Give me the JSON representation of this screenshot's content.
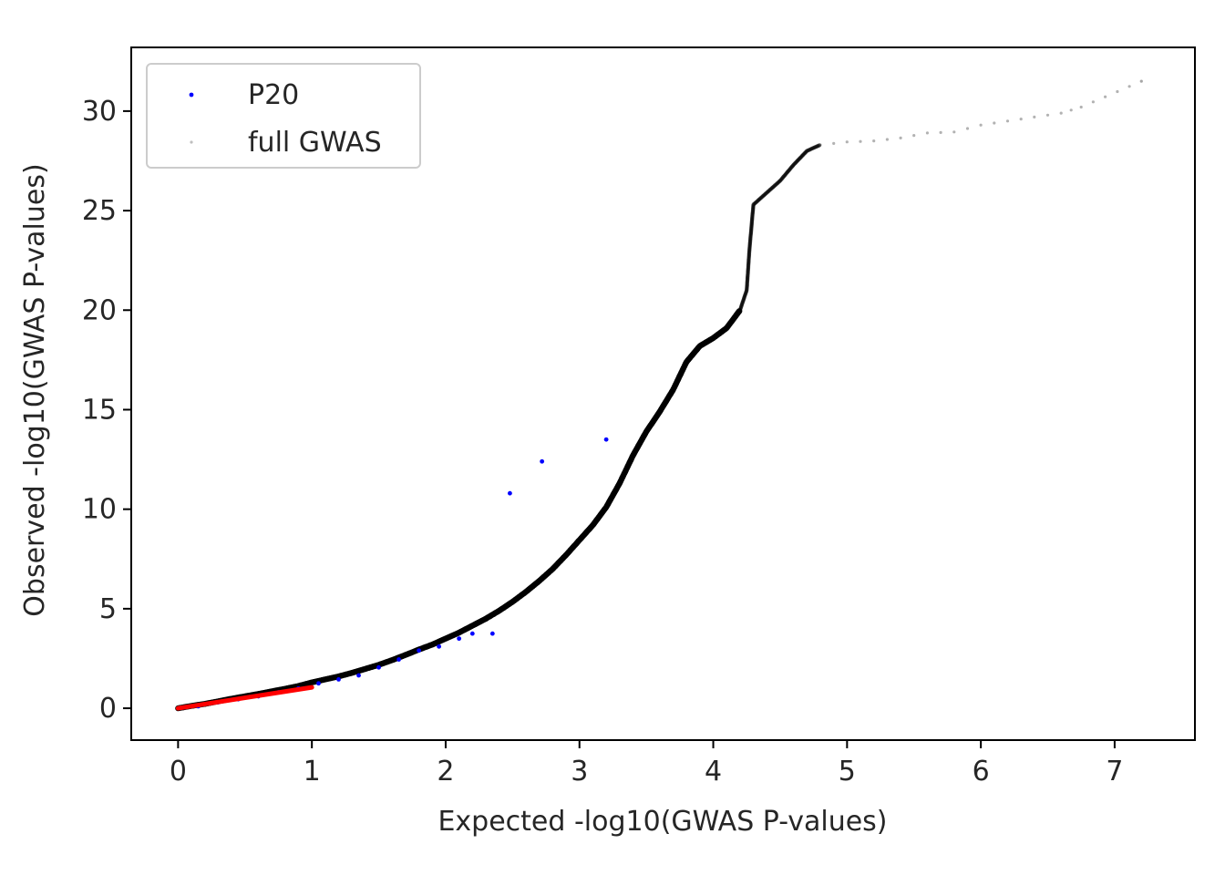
{
  "chart_data": {
    "type": "scatter",
    "xlabel": "Expected -log10(GWAS P-values)",
    "ylabel": "Observed -log10(GWAS P-values)",
    "xlim": [
      -0.35,
      7.6
    ],
    "ylim": [
      -1.6,
      33.2
    ],
    "x_ticks": [
      0,
      1,
      2,
      3,
      4,
      5,
      6,
      7
    ],
    "y_ticks": [
      0,
      5,
      10,
      15,
      20,
      25,
      30
    ],
    "grid": false,
    "legend_position": "top-left",
    "series": [
      {
        "name": "P20",
        "color": "#0000ff",
        "marker": "dot",
        "points": [
          [
            0.05,
            0.05
          ],
          [
            0.15,
            0.1
          ],
          [
            0.3,
            0.3
          ],
          [
            0.45,
            0.45
          ],
          [
            0.6,
            0.6
          ],
          [
            0.75,
            0.8
          ],
          [
            0.9,
            1.0
          ],
          [
            1.05,
            1.25
          ],
          [
            1.2,
            1.45
          ],
          [
            1.35,
            1.65
          ],
          [
            1.5,
            2.05
          ],
          [
            1.65,
            2.45
          ],
          [
            1.8,
            2.9
          ],
          [
            1.95,
            3.1
          ],
          [
            2.1,
            3.5
          ],
          [
            2.2,
            3.75
          ],
          [
            2.35,
            3.75
          ],
          [
            2.48,
            10.8
          ],
          [
            2.72,
            12.4
          ],
          [
            3.2,
            13.5
          ]
        ]
      },
      {
        "name": "full GWAS",
        "color": "#000000",
        "marker": "dot",
        "points": [
          [
            0.0,
            0.0
          ],
          [
            0.1,
            0.12
          ],
          [
            0.2,
            0.22
          ],
          [
            0.3,
            0.35
          ],
          [
            0.4,
            0.48
          ],
          [
            0.5,
            0.6
          ],
          [
            0.6,
            0.72
          ],
          [
            0.7,
            0.85
          ],
          [
            0.8,
            0.98
          ],
          [
            0.9,
            1.12
          ],
          [
            1.0,
            1.3
          ],
          [
            1.1,
            1.45
          ],
          [
            1.2,
            1.6
          ],
          [
            1.3,
            1.78
          ],
          [
            1.4,
            1.98
          ],
          [
            1.5,
            2.18
          ],
          [
            1.6,
            2.42
          ],
          [
            1.7,
            2.68
          ],
          [
            1.8,
            2.95
          ],
          [
            1.9,
            3.2
          ],
          [
            2.0,
            3.5
          ],
          [
            2.1,
            3.8
          ],
          [
            2.2,
            4.15
          ],
          [
            2.3,
            4.5
          ],
          [
            2.4,
            4.9
          ],
          [
            2.5,
            5.35
          ],
          [
            2.6,
            5.85
          ],
          [
            2.7,
            6.4
          ],
          [
            2.8,
            7.0
          ],
          [
            2.9,
            7.7
          ],
          [
            3.0,
            8.45
          ],
          [
            3.1,
            9.2
          ],
          [
            3.2,
            10.1
          ],
          [
            3.3,
            11.3
          ],
          [
            3.4,
            12.7
          ],
          [
            3.5,
            13.9
          ],
          [
            3.6,
            14.9
          ],
          [
            3.7,
            16.0
          ],
          [
            3.8,
            17.4
          ],
          [
            3.9,
            18.2
          ],
          [
            4.0,
            18.6
          ],
          [
            4.1,
            19.1
          ],
          [
            4.2,
            20.0
          ],
          [
            4.25,
            21.0
          ],
          [
            4.27,
            23.0
          ],
          [
            4.3,
            25.3
          ],
          [
            4.4,
            25.9
          ],
          [
            4.5,
            26.5
          ],
          [
            4.6,
            27.3
          ],
          [
            4.7,
            28.0
          ],
          [
            4.8,
            28.3
          ],
          [
            5.0,
            28.45
          ],
          [
            5.2,
            28.5
          ],
          [
            5.4,
            28.65
          ],
          [
            5.6,
            28.9
          ],
          [
            5.8,
            28.95
          ],
          [
            6.0,
            29.3
          ],
          [
            6.2,
            29.5
          ],
          [
            6.4,
            29.7
          ],
          [
            6.6,
            29.9
          ],
          [
            6.75,
            30.2
          ],
          [
            7.2,
            31.5
          ]
        ]
      },
      {
        "name": "",
        "color": "#ff0000",
        "marker": "line",
        "points": [
          [
            0.0,
            0.0
          ],
          [
            1.0,
            1.05
          ]
        ]
      }
    ]
  }
}
